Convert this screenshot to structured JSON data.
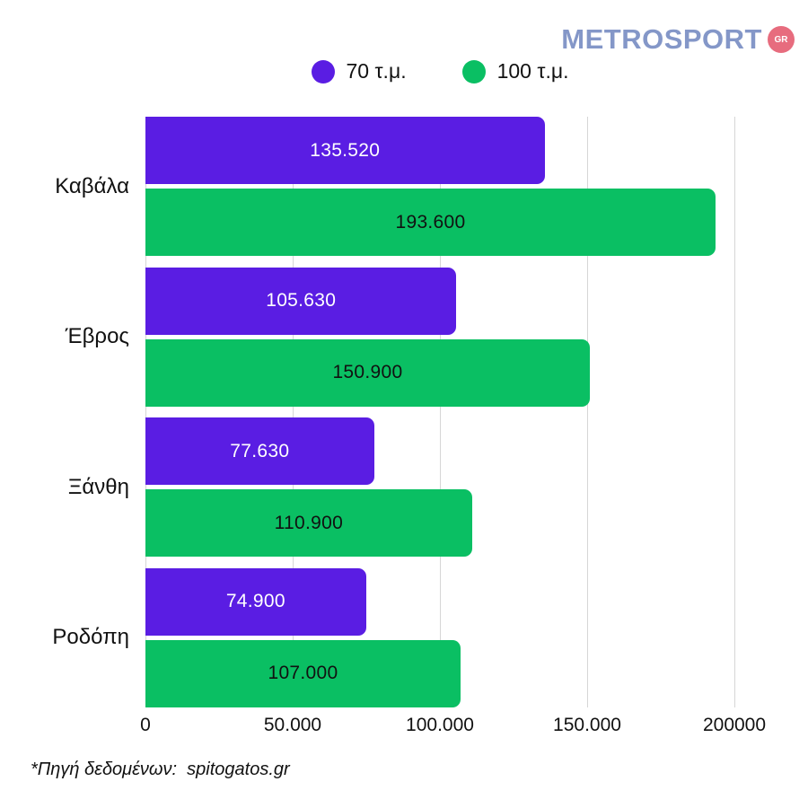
{
  "logo": {
    "text": "METROSPORT",
    "badge": "GR",
    "text_color": "#8497c8",
    "badge_color": "#e76c7e"
  },
  "legend": [
    {
      "label": "70 τ.μ.",
      "color": "#5a1de3"
    },
    {
      "label": "100 τ.μ.",
      "color": "#0abf63"
    }
  ],
  "footer": "*Πηγή δεδομένων:  spitogatos.gr",
  "colors": {
    "series_70": "#5a1de3",
    "series_100": "#0abf63",
    "gridline": "#d6d6d6",
    "value_on_purple": "#ffffff",
    "value_on_green": "#111111"
  },
  "chart_data": {
    "type": "bar",
    "orientation": "horizontal",
    "title": "",
    "xlabel": "",
    "ylabel": "",
    "grid": true,
    "legend_position": "top",
    "categories": [
      "Καβάλα",
      "Έβρος",
      "Ξάνθη",
      "Ροδόπη"
    ],
    "series": [
      {
        "name": "70 τ.μ.",
        "color": "#5a1de3",
        "label_color": "#ffffff",
        "values": [
          135520,
          105630,
          77630,
          74900
        ],
        "labels": [
          "135.520",
          "105.630",
          "77.630",
          "74.900"
        ]
      },
      {
        "name": "100 τ.μ.",
        "color": "#0abf63",
        "label_color": "#111111",
        "values": [
          193600,
          150900,
          110900,
          107000
        ],
        "labels": [
          "193.600",
          "150.900",
          "110.900",
          "107.000"
        ]
      }
    ],
    "x_axis": {
      "min": 0,
      "max": 200000,
      "ticks": [
        0,
        50000,
        100000,
        150000,
        200000
      ],
      "tick_labels": [
        "0",
        "50.000",
        "100.000",
        "150.000",
        "200000"
      ]
    }
  }
}
